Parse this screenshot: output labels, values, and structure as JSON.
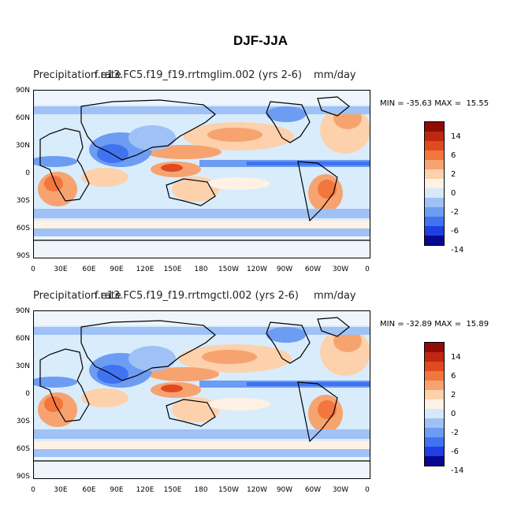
{
  "title": "DJF-JJA",
  "colors": {
    "scale": [
      "#08088f",
      "#1f3fe3",
      "#3f73f0",
      "#6d9cf3",
      "#9fc1f6",
      "#d7e8fb",
      "#fff1e3",
      "#fcd1ac",
      "#f7a370",
      "#f2763d",
      "#df4a21",
      "#bf2810",
      "#8f0b06"
    ]
  },
  "panels": [
    {
      "title_left": "Precipitation rate",
      "title_case": "f.e13.FC5.f19_f19.rrtmglim.002 (yrs 2-6)",
      "units": "mm/day",
      "minmax": "MIN = -35.63 MAX =  15.55"
    },
    {
      "title_left": "Precipitation rate",
      "title_case": "f.e13.FC5.f19_f19.rrtmgctl.002 (yrs 2-6)",
      "units": "mm/day",
      "minmax": "MIN = -32.89 MAX =  15.89"
    }
  ],
  "lat_labels": [
    "90N",
    "60N",
    "30N",
    "0",
    "30S",
    "60S",
    "90S"
  ],
  "lon_labels": [
    "0",
    "30E",
    "60E",
    "90E",
    "120E",
    "150E",
    "180",
    "150W",
    "120W",
    "90W",
    "60W",
    "30W",
    "0"
  ],
  "colorbar_labels": [
    "14",
    "6",
    "2",
    "0",
    "-2",
    "-6",
    "-14"
  ]
}
